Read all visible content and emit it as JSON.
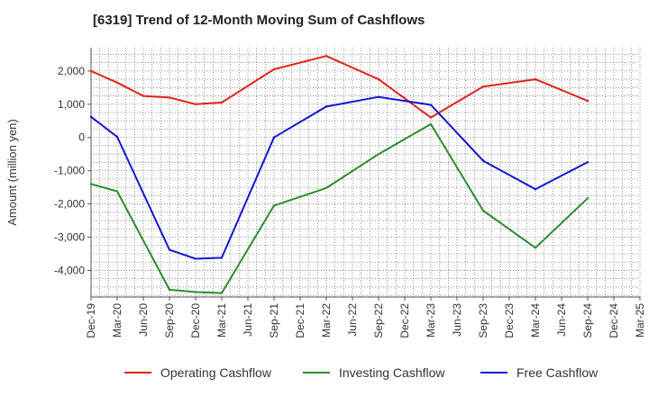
{
  "chart_data": {
    "type": "line",
    "title": "[6319]  Trend of 12-Month Moving Sum of Cashflows",
    "xlabel": "",
    "ylabel": "Amount (million yen)",
    "ylim": [
      -4800,
      2700
    ],
    "yticks": [
      2000,
      1000,
      0,
      -1000,
      -2000,
      -3000,
      -4000
    ],
    "ytick_labels": [
      "2,000",
      "1,000",
      "0",
      "-1,000",
      "-2,000",
      "-3,000",
      "-4,000"
    ],
    "categories": [
      "Dec-19",
      "Mar-20",
      "Jun-20",
      "Sep-20",
      "Dec-20",
      "Mar-21",
      "Jun-21",
      "Sep-21",
      "Dec-21",
      "Mar-22",
      "Jun-22",
      "Sep-22",
      "Dec-22",
      "Mar-23",
      "Jun-23",
      "Sep-23",
      "Dec-23",
      "Mar-24",
      "Jun-24",
      "Sep-24",
      "Dec-24",
      "Mar-25"
    ],
    "grid": true,
    "legend_position": "bottom",
    "series": [
      {
        "name": "Operating Cashflow",
        "color": "#e2231a",
        "values": [
          2000,
          1650,
          1250,
          1200,
          1000,
          1050,
          null,
          2050,
          null,
          2450,
          null,
          1750,
          null,
          600,
          null,
          1530,
          null,
          1750,
          null,
          1100,
          null,
          null
        ]
      },
      {
        "name": "Investing Cashflow",
        "color": "#2e8b2e",
        "values": [
          -1400,
          -1620,
          null,
          -4580,
          -4650,
          -4680,
          null,
          -2050,
          null,
          -1520,
          null,
          -500,
          null,
          400,
          null,
          -2200,
          null,
          -3320,
          null,
          -1830,
          null,
          null
        ]
      },
      {
        "name": "Free Cashflow",
        "color": "#1515d0",
        "values": [
          620,
          20,
          null,
          -3380,
          -3650,
          -3620,
          null,
          0,
          null,
          930,
          null,
          1220,
          null,
          980,
          null,
          -700,
          null,
          -1560,
          null,
          -740,
          null,
          null
        ]
      }
    ]
  }
}
